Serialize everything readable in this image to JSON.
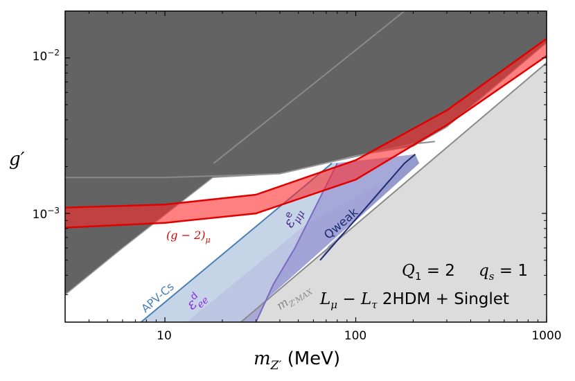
{
  "chart_data": {
    "type": "area",
    "xlabel": "m_{Z'} (MeV)",
    "ylabel": "g'",
    "xscale": "log",
    "yscale": "log",
    "xlim": [
      3,
      1000
    ],
    "ylim": [
      0.0002,
      0.02
    ],
    "x_ticks": [
      {
        "value": 10,
        "label": "10"
      },
      {
        "value": 100,
        "label": "100"
      },
      {
        "value": 1000,
        "label": "1000"
      }
    ],
    "y_ticks": [
      {
        "value": 0.001,
        "label": "10⁻³"
      },
      {
        "value": 0.01,
        "label": "10⁻²"
      }
    ],
    "regions": [
      {
        "name": "excluded-dark",
        "color": "#636363",
        "boundary": [
          [
            3,
            0.0003
          ],
          [
            6,
            0.0006
          ],
          [
            17.8,
            0.0017
          ],
          [
            40,
            0.0018
          ],
          [
            75,
            0.00215
          ],
          [
            100,
            0.00235
          ],
          [
            200,
            0.0027
          ],
          [
            300,
            0.0036
          ],
          [
            500,
            0.0061
          ],
          [
            1000,
            0.0125
          ]
        ]
      },
      {
        "name": "excluded-light",
        "color": "#dcdcdc",
        "boundary": [
          [
            25,
            0.0002
          ],
          [
            1000,
            0.0093
          ]
        ]
      },
      {
        "name": "APV-Cs",
        "color": "#c2d3e6",
        "boundary": [
          [
            7.5,
            0.0002
          ],
          [
            75,
            0.0021
          ]
        ]
      },
      {
        "name": "epsilon_ee_d",
        "color": "#c4c7e4",
        "boundary": [
          [
            13,
            0.0002
          ],
          [
            55,
            0.00085
          ]
        ]
      },
      {
        "name": "epsilon_mumu_e",
        "color": "#a7a5da",
        "boundary": [
          [
            30,
            0.0002
          ],
          [
            37,
            0.00035
          ],
          [
            48,
            0.0006
          ],
          [
            80,
            0.0021
          ]
        ]
      },
      {
        "name": "Qweak",
        "color": "#9ba0cf",
        "boundary": [
          [
            65,
            0.0005
          ],
          [
            180,
            0.0021
          ],
          [
            205,
            0.0024
          ]
        ]
      }
    ],
    "band": {
      "name": "(g-2)_mu",
      "lower": [
        [
          3,
          0.00081
        ],
        [
          10,
          0.00087
        ],
        [
          30,
          0.001
        ],
        [
          100,
          0.00165
        ],
        [
          300,
          0.0037
        ],
        [
          1000,
          0.0103
        ]
      ],
      "upper": [
        [
          3,
          0.00109
        ],
        [
          10,
          0.00114
        ],
        [
          30,
          0.00132
        ],
        [
          100,
          0.0022
        ],
        [
          300,
          0.0046
        ],
        [
          1000,
          0.0133
        ]
      ],
      "color": "#ff0000"
    },
    "annotations": {
      "apv": "APV-Cs",
      "eps_ee_base": "ε",
      "eps_ee_sup": "d",
      "eps_ee_sub": "ee",
      "eps_mumu_base": "ε",
      "eps_mumu_sup": "e",
      "eps_mumu_sub": "μμ",
      "qweak": "Qweak",
      "mzmax_base": "m",
      "mzmax_sub": "Z'MAX",
      "g2_base": "(g − 2)",
      "g2_sub": "μ",
      "q1": "Q",
      "q1_sub": "1",
      "q1_val": " = 2",
      "qs": "q",
      "qs_sub": "s",
      "qs_val": " = 1",
      "model_L1": "L",
      "model_L1_sub": "μ",
      "model_minus": " − ",
      "model_L2": "L",
      "model_L2_sub": "τ",
      "model_rest": " 2HDM + Singlet"
    },
    "axis_text": {
      "ylabel": "g′",
      "xlabel_base": "m",
      "xlabel_sub": "Z′",
      "xlabel_unit": " (MeV)"
    }
  }
}
